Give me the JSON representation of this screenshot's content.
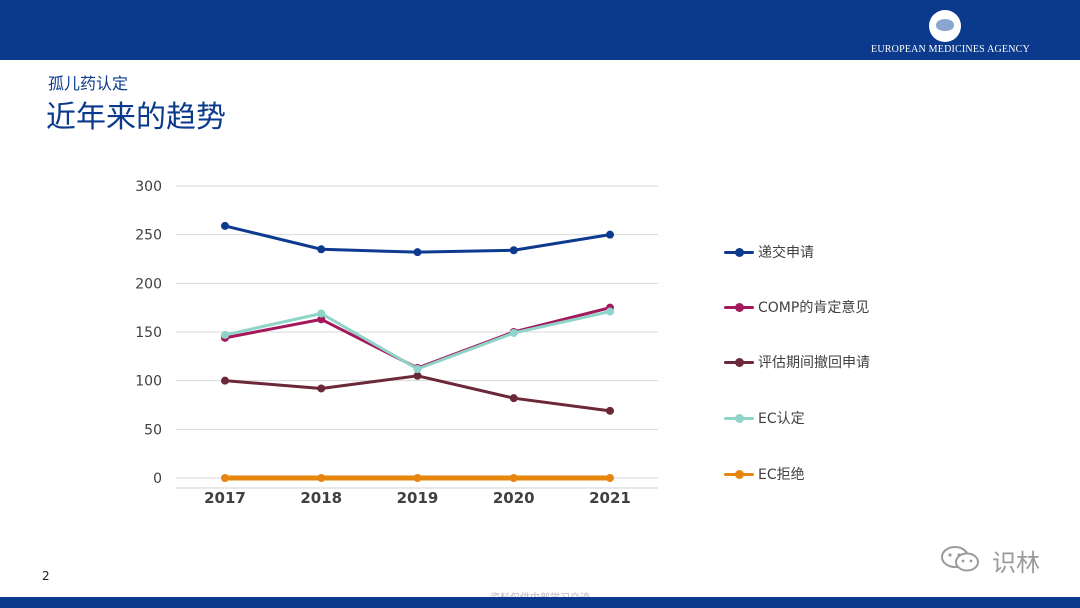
{
  "header": {
    "agency": "EUROPEAN MEDICINES AGENCY"
  },
  "slide": {
    "subtitle": "孤儿药认定",
    "title": "近年来的趋势",
    "page_number": "2"
  },
  "watermark": {
    "text": "识林"
  },
  "footer": {
    "text": "资料仅供内部学习交流"
  },
  "chart_data": {
    "type": "line",
    "x": [
      "2017",
      "2018",
      "2019",
      "2020",
      "2021"
    ],
    "ylim": [
      0,
      300
    ],
    "yticks": [
      0,
      50,
      100,
      150,
      200,
      250,
      300
    ],
    "grid": true,
    "legend_position": "right",
    "series": [
      {
        "name": "递交申请",
        "color": "#0d3a8f",
        "values": [
          259,
          235,
          232,
          234,
          250
        ]
      },
      {
        "name": "COMP的肯定意见",
        "color": "#a4185c",
        "values": [
          144,
          163,
          113,
          150,
          175
        ]
      },
      {
        "name": "评估期间撤回申请",
        "color": "#6b2838",
        "values": [
          100,
          92,
          105,
          82,
          69
        ]
      },
      {
        "name": "EC认定",
        "color": "#8ed4c9",
        "values": [
          147,
          169,
          112,
          149,
          171
        ]
      },
      {
        "name": "EC拒绝",
        "color": "#e6860e",
        "values": [
          0,
          0,
          0,
          0,
          0
        ]
      }
    ]
  }
}
